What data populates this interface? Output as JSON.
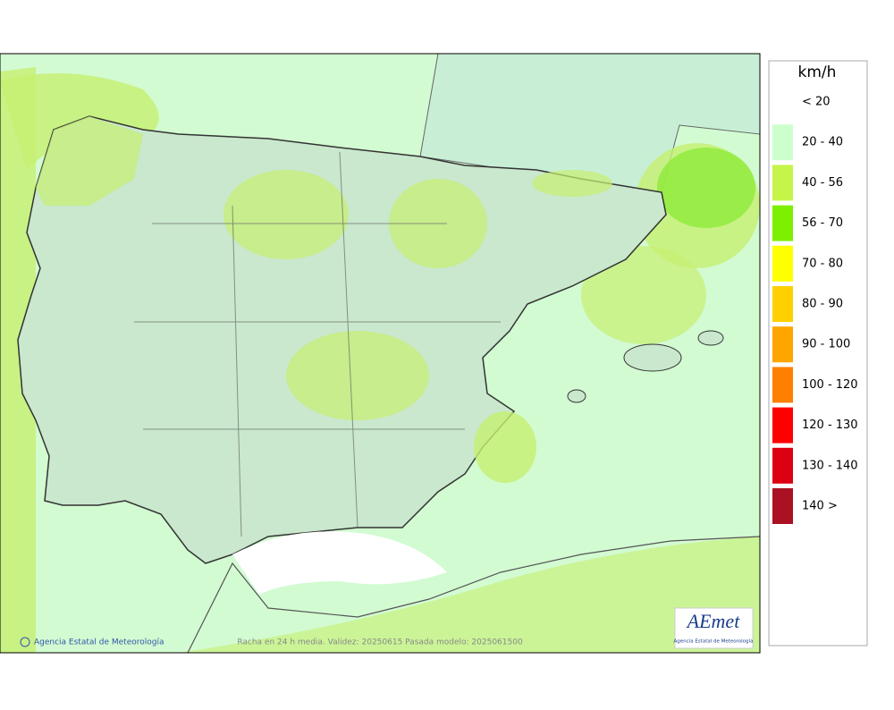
{
  "legend": {
    "title": "km/h",
    "items": [
      {
        "label": "< 20"
      },
      {
        "label": "20 - 40",
        "color": "#ccffcc"
      },
      {
        "label": "40 - 56",
        "color": "#c6f54a"
      },
      {
        "label": "56 - 70",
        "color": "#7cf000"
      },
      {
        "label": "70 - 80",
        "color": "#ffff00"
      },
      {
        "label": "80 - 90",
        "color": "#ffd000"
      },
      {
        "label": "90 - 100",
        "color": "#ffa500"
      },
      {
        "label": "100 - 120",
        "color": "#ff8000"
      },
      {
        "label": "120 - 130",
        "color": "#ff0000"
      },
      {
        "label": "130 - 140",
        "color": "#dd0011"
      },
      {
        "label": "140 >",
        "color": "#aa1122"
      }
    ]
  },
  "footer": {
    "credit": "Agencia Estatal de Meteorología",
    "caption": "Racha en 24 h media. Validez: 20250615 Pasada modelo: 2025061500"
  },
  "logo": {
    "name": "AEmet",
    "subtitle": "Agencia Estatal de Meteorología"
  }
}
